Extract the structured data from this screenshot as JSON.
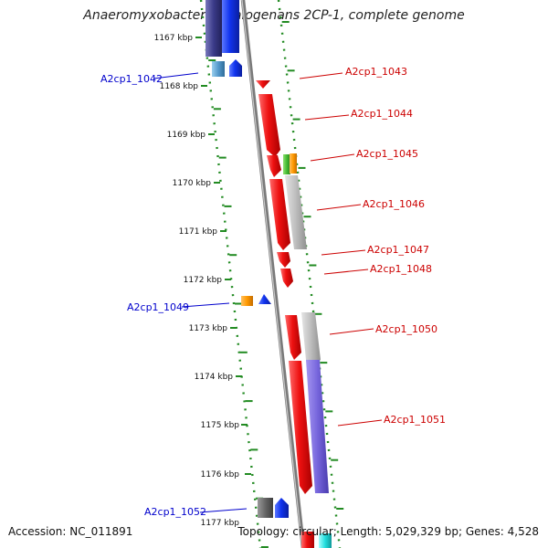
{
  "title": "Anaeromyxobacter dehalogenans 2CP-1, complete genome",
  "accession_text": "Accession: NC_011891",
  "summary_text": "Topology: circular; Length: 5,029,329 bp; Genes: 4,528",
  "colors": {
    "forward_label": "#cc0000",
    "reverse_label": "#0000cc",
    "tick_mark": "#228b22",
    "backbone": "#888888",
    "gene_red": "#ee1111",
    "gene_blue": "#1133ee",
    "gene_gray": "#bbbbbb",
    "gene_purple": "#7766dd"
  },
  "kbp_ticks": [
    "1167 kbp",
    "1168 kbp",
    "1169 kbp",
    "1170 kbp",
    "1171 kbp",
    "1172 kbp",
    "1173 kbp",
    "1174 kbp",
    "1175 kbp",
    "1176 kbp",
    "1177 kbp"
  ],
  "gene_labels": [
    {
      "text": "A2cp1_1042",
      "strand": "reverse"
    },
    {
      "text": "A2cp1_1043",
      "strand": "forward"
    },
    {
      "text": "A2cp1_1044",
      "strand": "forward"
    },
    {
      "text": "A2cp1_1045",
      "strand": "forward"
    },
    {
      "text": "A2cp1_1046",
      "strand": "forward"
    },
    {
      "text": "A2cp1_1047",
      "strand": "forward"
    },
    {
      "text": "A2cp1_1048",
      "strand": "forward"
    },
    {
      "text": "A2cp1_1049",
      "strand": "reverse"
    },
    {
      "text": "A2cp1_1050",
      "strand": "forward"
    },
    {
      "text": "A2cp1_1051",
      "strand": "forward"
    },
    {
      "text": "A2cp1_1052",
      "strand": "reverse"
    }
  ]
}
